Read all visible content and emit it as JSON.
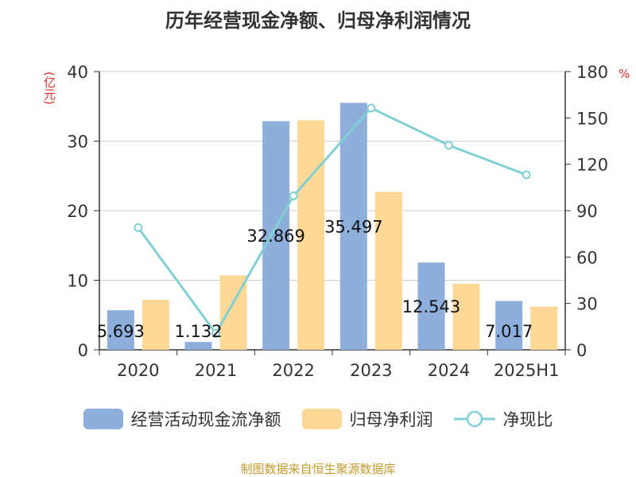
{
  "title": "历年经营现金净额、归母净利润情况",
  "source": "制图数据来自恒生聚源数据库",
  "chart_data": {
    "type": "bar",
    "categories": [
      "2020",
      "2021",
      "2022",
      "2023",
      "2024",
      "2025H1"
    ],
    "y_left": {
      "unit": "(亿元)",
      "range": [
        0,
        40
      ],
      "ticks": [
        "0",
        "10",
        "20",
        "30",
        "40"
      ]
    },
    "y_right": {
      "unit": "%",
      "range": [
        0,
        180
      ],
      "ticks": [
        "0",
        "30",
        "60",
        "90",
        "120",
        "150",
        "180"
      ]
    },
    "grid": true,
    "legend_position": "bottom",
    "series": [
      {
        "name": "经营活动现金流净额",
        "type": "bar",
        "axis": "left",
        "color": "#8eafdb",
        "values": [
          5.693,
          1.132,
          32.869,
          35.497,
          12.543,
          7.017
        ],
        "labels": [
          "5.693",
          "1.132",
          "32.869",
          "35.497",
          "12.543",
          "7.017"
        ]
      },
      {
        "name": "归母净利润",
        "type": "bar",
        "axis": "left",
        "color": "#fed897",
        "values": [
          7.2,
          10.7,
          33.0,
          22.7,
          9.5,
          6.2
        ]
      },
      {
        "name": "净现比",
        "type": "line",
        "axis": "right",
        "color": "#80d0d4",
        "values": [
          79,
          10.6,
          99.6,
          156.4,
          132.3,
          113.2
        ]
      }
    ]
  }
}
